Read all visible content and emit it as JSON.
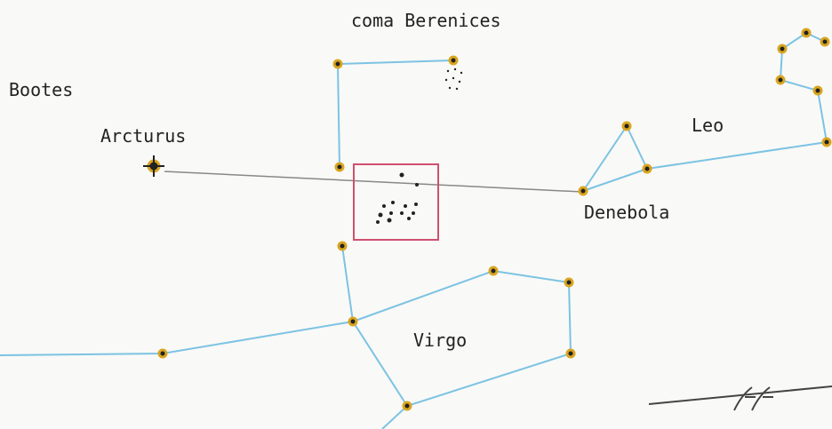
{
  "labels": {
    "coma": "coma Berenices",
    "bootes": "Bootes",
    "arcturus": "Arcturus",
    "leo": "Leo",
    "denebola": "Denebola",
    "virgo": "Virgo"
  }
}
